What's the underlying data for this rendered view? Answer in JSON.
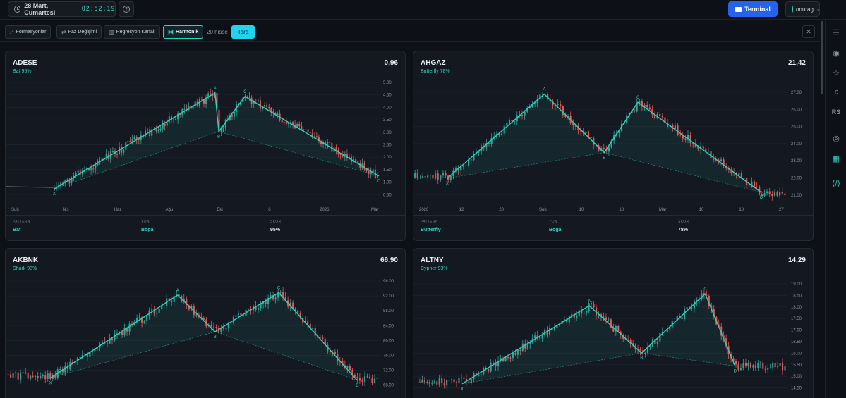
{
  "header": {
    "date": "28 Mart, Cumartesi",
    "time": "02:52:19",
    "terminal_label": "Terminal",
    "username": "onurag"
  },
  "filters": {
    "items": [
      {
        "label": "Formasyonlar",
        "icon": "chart-line-icon",
        "active": false
      },
      {
        "label": "Faz Değişimi",
        "icon": "arrows-icon",
        "active": false
      },
      {
        "label": "Regresyon Kanalı",
        "icon": "bar-chart-icon",
        "active": false
      },
      {
        "label": "Harmonik",
        "icon": "harmonic-icon",
        "active": true
      }
    ],
    "count_label": "20 hisse",
    "scan_label": "Tara"
  },
  "rail": [
    "menu-icon",
    "broadcast-icon",
    "star-icon",
    "bell-icon",
    "rs-icon",
    "radar-icon",
    "grid-icon",
    "code-icon"
  ],
  "rail_rs_label": "RS",
  "footer_labels": {
    "pattern": "PATTERN",
    "direction": "YON",
    "score": "SKOR"
  },
  "cards": [
    {
      "symbol": "ADESE",
      "pattern_line": "Bat 95%",
      "value": "0,96",
      "pattern": "Bat",
      "direction": "Boga",
      "score": "95%",
      "y_ticks": [
        "5.00",
        "4.50",
        "4.00",
        "3.50",
        "3.00",
        "2.50",
        "2.00",
        "1.50",
        "1.00",
        "0.50"
      ],
      "x_ticks": [
        "Şub",
        "Nis",
        "Haz",
        "Ağu",
        "Eki",
        "6",
        "2026",
        "Mar"
      ],
      "points": [
        "X",
        "A",
        "B",
        "C",
        "D"
      ]
    },
    {
      "symbol": "AHGAZ",
      "pattern_line": "Butterfly 78%",
      "value": "21,42",
      "pattern": "Butterfly",
      "direction": "Boga",
      "score": "78%",
      "y_ticks": [
        "27.00",
        "26.00",
        "25.00",
        "24.00",
        "23.00",
        "22.00",
        "21.00"
      ],
      "x_ticks": [
        "2026",
        "12",
        "20",
        "Şub",
        "10",
        "18",
        "Mar",
        "10",
        "18",
        "27"
      ],
      "points": [
        "X",
        "A",
        "B",
        "C",
        "D"
      ]
    },
    {
      "symbol": "AKBNK",
      "pattern_line": "Shark 93%",
      "value": "66,90",
      "pattern": "Shark",
      "direction": "Boga",
      "score": "93%",
      "y_ticks": [
        "96.00",
        "92.00",
        "88.00",
        "84.00",
        "80.00",
        "76.00",
        "72.00",
        "68.00"
      ],
      "x_ticks": [],
      "points": [
        "X",
        "A",
        "B",
        "C",
        "D"
      ]
    },
    {
      "symbol": "ALTNY",
      "pattern_line": "Cypher 93%",
      "value": "14,29",
      "pattern": "Cypher",
      "direction": "Boga",
      "score": "93%",
      "y_ticks": [
        "19.00",
        "18.50",
        "18.00",
        "17.50",
        "17.00",
        "16.50",
        "16.00",
        "15.50",
        "15.00",
        "14.50"
      ],
      "x_ticks": [],
      "points": [
        "X",
        "A",
        "B",
        "C",
        "D"
      ]
    }
  ],
  "colors": {
    "accent": "#2dd4bf",
    "up": "#26a69a",
    "down": "#ef5350",
    "terminal": "#2563eb"
  }
}
